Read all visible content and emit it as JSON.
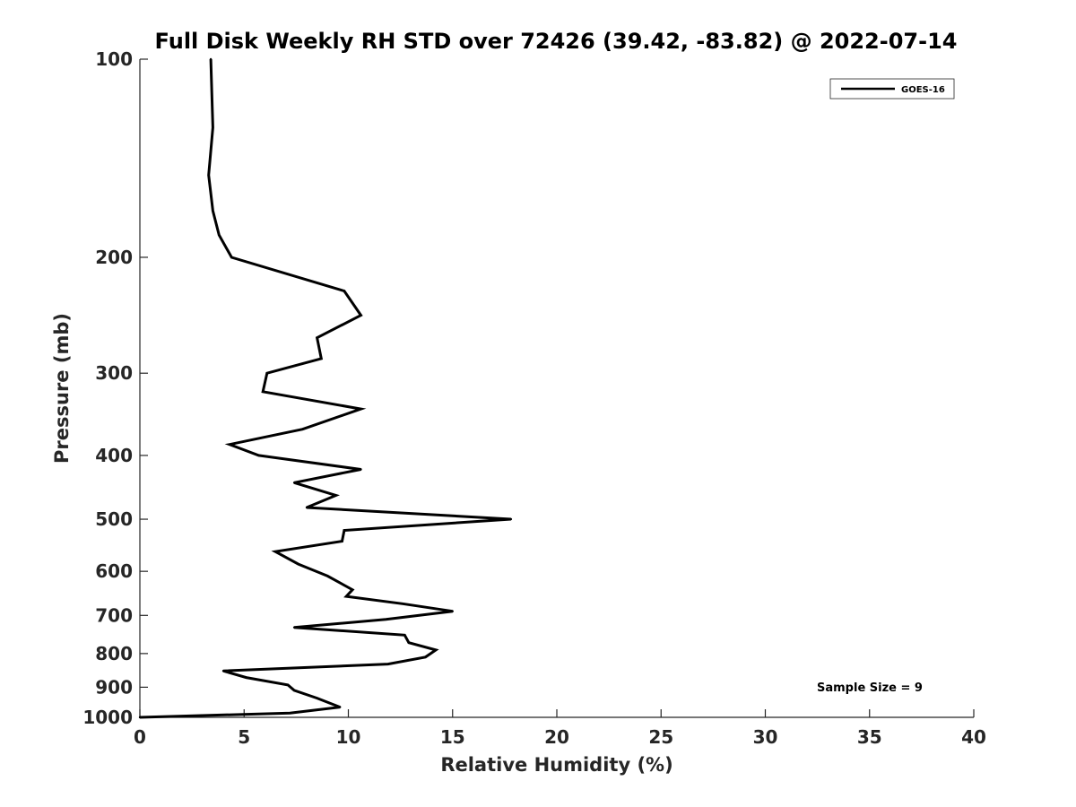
{
  "chart_data": {
    "type": "line",
    "title": "Full Disk Weekly RH STD over 72426 (39.42, -83.82) @ 2022-07-14",
    "xlabel": "Relative Humidity (%)",
    "ylabel": "Pressure (mb)",
    "xlim": [
      0,
      40
    ],
    "ylim": [
      100,
      1000
    ],
    "y_scale": "log",
    "y_reversed": true,
    "xticks": [
      "0",
      "5",
      "10",
      "15",
      "20",
      "25",
      "30",
      "35",
      "40"
    ],
    "yticks": [
      "100",
      "200",
      "300",
      "400",
      "500",
      "600",
      "700",
      "800",
      "900",
      "1000"
    ],
    "grid": false,
    "legend_position": "top-right",
    "annotation": "Sample Size = 9",
    "series": [
      {
        "name": "GOES-16",
        "color": "#000000",
        "x": [
          3.4,
          3.5,
          3.3,
          3.5,
          3.8,
          4.4,
          9.8,
          10.6,
          8.5,
          8.7,
          6.1,
          5.9,
          10.6,
          7.8,
          4.3,
          5.7,
          10.6,
          7.4,
          9.4,
          8.0,
          17.8,
          9.8,
          9.7,
          6.5,
          7.6,
          9.0,
          10.2,
          9.9,
          12.6,
          15.0,
          11.8,
          7.4,
          12.7,
          12.9,
          14.2,
          13.7,
          11.9,
          4.0,
          5.1,
          7.1,
          7.4,
          8.5,
          9.6,
          7.2,
          0.0
        ],
        "y": [
          100,
          127,
          150,
          170,
          185,
          200,
          225,
          245,
          265,
          285,
          300,
          320,
          340,
          365,
          385,
          400,
          420,
          440,
          460,
          480,
          500,
          520,
          540,
          560,
          585,
          610,
          640,
          655,
          672,
          690,
          710,
          730,
          750,
          770,
          790,
          810,
          830,
          850,
          870,
          893,
          910,
          935,
          965,
          985,
          1000
        ]
      }
    ]
  }
}
